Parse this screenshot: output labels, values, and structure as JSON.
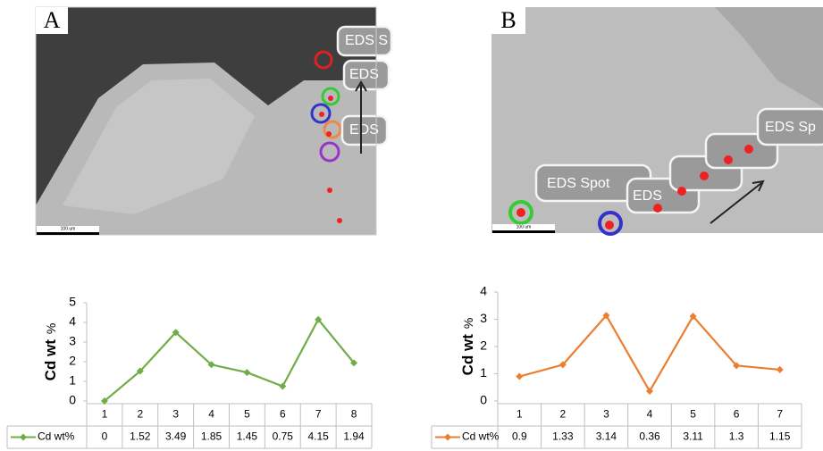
{
  "images": [
    {
      "label": "A",
      "scale": "100 um",
      "spots": [
        "EDS S",
        "EDS",
        "EDS"
      ]
    },
    {
      "label": "B",
      "scale": "100 um",
      "spots": [
        "EDS Spot",
        "EDS",
        "EDS Sp"
      ]
    }
  ],
  "chart_data": [
    {
      "type": "line",
      "ylabel": "Cd wt",
      "ylabel_unit": "%",
      "categories": [
        "1",
        "2",
        "3",
        "4",
        "5",
        "6",
        "7",
        "8"
      ],
      "series": [
        {
          "name": "Cd wt%",
          "color": "#70ad47",
          "values": [
            0,
            1.52,
            3.49,
            1.85,
            1.45,
            0.75,
            4.15,
            1.94
          ]
        }
      ],
      "ylim": [
        0,
        5
      ],
      "yticks": [
        0,
        1,
        2,
        3,
        4,
        5
      ]
    },
    {
      "type": "line",
      "ylabel": "Cd wt",
      "ylabel_unit": "%",
      "categories": [
        "1",
        "2",
        "3",
        "4",
        "5",
        "6",
        "7"
      ],
      "series": [
        {
          "name": "Cd wt%",
          "color": "#ed7d31",
          "values": [
            0.9,
            1.33,
            3.14,
            0.36,
            3.11,
            1.3,
            1.15
          ]
        }
      ],
      "ylim": [
        0,
        4
      ],
      "yticks": [
        0,
        1,
        2,
        3,
        4
      ]
    }
  ]
}
